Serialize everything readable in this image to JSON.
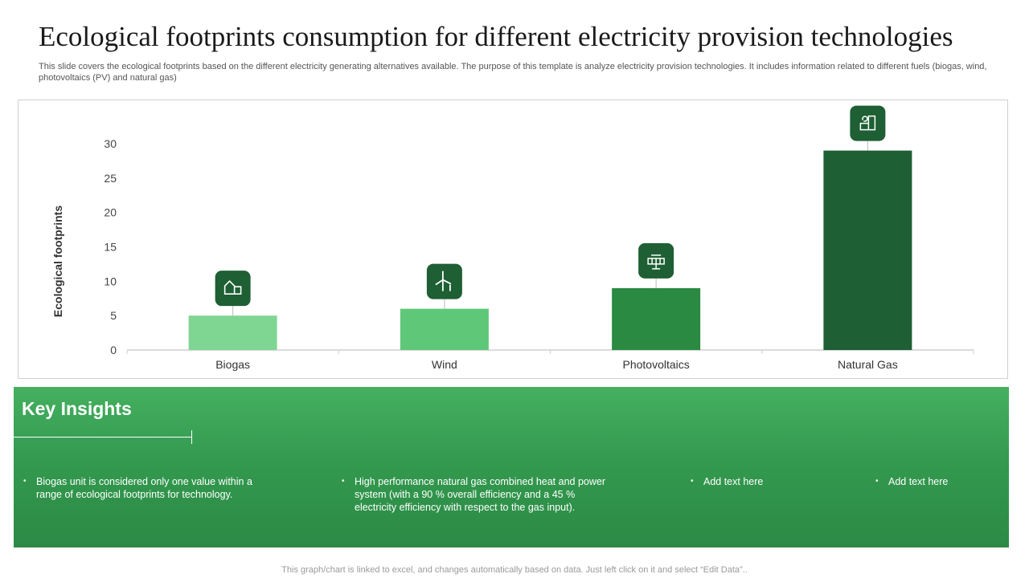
{
  "header": {
    "title": "Ecological footprints consumption for different electricity provision technologies",
    "subtitle": "This slide covers the ecological footprints based on the different electricity generating alternatives available. The purpose of this template is analyze electricity provision technologies. It includes information related to different fuels (biogas, wind, photovoltaics (PV)  and natural gas)"
  },
  "chart_data": {
    "type": "bar",
    "title": "",
    "xlabel": "",
    "ylabel": "Ecological footprints",
    "categories": [
      "Biogas",
      "Wind",
      "Photovoltaics",
      "Natural Gas"
    ],
    "values": [
      5,
      6,
      9,
      29
    ],
    "ylim": [
      0,
      30
    ],
    "yticks": [
      0,
      5,
      10,
      15,
      20,
      25,
      30
    ],
    "grid": false,
    "bar_colors": [
      "#7fd693",
      "#5ec878",
      "#2a8a42",
      "#1e5f33"
    ],
    "icons": [
      "house-icon",
      "wind-turbine-icon",
      "solar-panel-icon",
      "gas-plant-icon"
    ]
  },
  "insights": {
    "title": "Key Insights",
    "items": [
      "Biogas unit is considered only one value within a range of ecological footprints for technology.",
      "High performance  natural gas combined heat and power  system (with a 90 % overall  efficiency and a 45 % electricity efficiency with respect to the gas input).",
      "Add text here",
      "Add text here"
    ]
  },
  "footer": {
    "note": "This graph/chart is linked to excel,  and changes automatically based on data. Just left click on it and select “Edit Data”.."
  },
  "colors": {
    "accent_green": "#339a4f",
    "icon_dark": "#1e5f33",
    "axis": "#cfcfcf"
  }
}
